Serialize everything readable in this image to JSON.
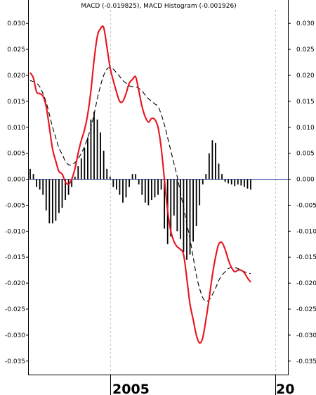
{
  "chart_data": {
    "type": "line",
    "title": "MACD (-0.019825), MACD Histogram (-0.001926)",
    "x_labels": [
      "2005",
      "20"
    ],
    "y_ticks": [
      0.03,
      0.025,
      0.02,
      0.015,
      0.01,
      0.005,
      0.0,
      -0.005,
      -0.01,
      -0.015,
      -0.02,
      -0.025,
      -0.03,
      -0.035
    ],
    "y_tick_labels": [
      "0.030",
      "0.025",
      "0.020",
      "0.015",
      "0.010",
      "0.005",
      "0.000",
      "-0.005",
      "-0.010",
      "-0.015",
      "-0.020",
      "-0.025",
      "-0.030",
      "-0.035"
    ],
    "ylim": [
      -0.0376,
      0.0345
    ],
    "grid": "vertical dashed at year boundaries",
    "colors": {
      "macd": "#e8141e",
      "signal": "#000000",
      "histogram": "#000000",
      "zero_line": "#1f2a9a",
      "grid": "#c8c8c8"
    },
    "series": [
      {
        "key": "macd",
        "style": "solid",
        "values": [
          0.0205,
          0.0195,
          0.0168,
          0.0165,
          0.016,
          0.014,
          0.01,
          0.0058,
          0.0035,
          0.0015,
          0.001,
          -0.0005,
          -0.001,
          0.0,
          0.002,
          0.005,
          0.0075,
          0.0095,
          0.0125,
          0.017,
          0.023,
          0.0275,
          0.029,
          0.0292,
          0.0255,
          0.0215,
          0.019,
          0.0168,
          0.015,
          0.015,
          0.0165,
          0.0185,
          0.0192,
          0.0197,
          0.017,
          0.014,
          0.012,
          0.011,
          0.0117,
          0.0115,
          0.01,
          0.006,
          0.0,
          -0.006,
          -0.01,
          -0.012,
          -0.013,
          -0.0135,
          -0.0145,
          -0.019,
          -0.024,
          -0.027,
          -0.03,
          -0.0315,
          -0.0305,
          -0.027,
          -0.023,
          -0.0185,
          -0.015,
          -0.0125,
          -0.0122,
          -0.0135,
          -0.0155,
          -0.017,
          -0.0178,
          -0.0175,
          -0.0175,
          -0.018,
          -0.019,
          -0.0198
        ]
      },
      {
        "key": "signal",
        "style": "dashed",
        "values": [
          0.019,
          0.0188,
          0.0185,
          0.0178,
          0.0165,
          0.0148,
          0.0125,
          0.01,
          0.008,
          0.006,
          0.0048,
          0.0035,
          0.0028,
          0.0028,
          0.0032,
          0.004,
          0.005,
          0.0063,
          0.008,
          0.01,
          0.0125,
          0.0155,
          0.018,
          0.02,
          0.0212,
          0.0215,
          0.0212,
          0.0205,
          0.0198,
          0.019,
          0.0185,
          0.018,
          0.0178,
          0.0178,
          0.0175,
          0.017,
          0.0162,
          0.0155,
          0.015,
          0.0145,
          0.014,
          0.0125,
          0.0105,
          0.008,
          0.0055,
          0.003,
          0.0005,
          -0.0025,
          -0.0055,
          -0.0085,
          -0.0115,
          -0.015,
          -0.0185,
          -0.021,
          -0.0228,
          -0.0235,
          -0.0232,
          -0.0222,
          -0.021,
          -0.0195,
          -0.0185,
          -0.0178,
          -0.0172,
          -0.017,
          -0.017,
          -0.0172,
          -0.0175,
          -0.0178,
          -0.018,
          -0.0182
        ]
      },
      {
        "key": "histogram",
        "style": "bars",
        "values": [
          0.002,
          0.001,
          -0.0015,
          -0.002,
          -0.003,
          -0.006,
          -0.0085,
          -0.0085,
          -0.008,
          -0.0065,
          -0.0055,
          -0.004,
          -0.003,
          -0.0015,
          0.0005,
          0.0025,
          0.004,
          0.006,
          0.008,
          0.0115,
          0.013,
          0.0115,
          0.009,
          0.0055,
          0.002,
          0.0005,
          -0.0015,
          -0.002,
          -0.003,
          -0.0045,
          -0.0035,
          -0.0015,
          0.001,
          0.001,
          -0.001,
          -0.003,
          -0.0045,
          -0.005,
          -0.004,
          -0.0035,
          -0.003,
          -0.002,
          -0.0095,
          -0.0125,
          -0.011,
          -0.007,
          -0.01,
          -0.0115,
          -0.014,
          -0.0155,
          -0.0145,
          -0.012,
          -0.009,
          -0.005,
          -0.001,
          0.001,
          0.005,
          0.0075,
          0.007,
          0.003,
          0.001,
          -0.0005,
          -0.0008,
          -0.001,
          -0.0013,
          -0.001,
          -0.0012,
          -0.0015,
          -0.0018,
          -0.002
        ]
      }
    ]
  }
}
